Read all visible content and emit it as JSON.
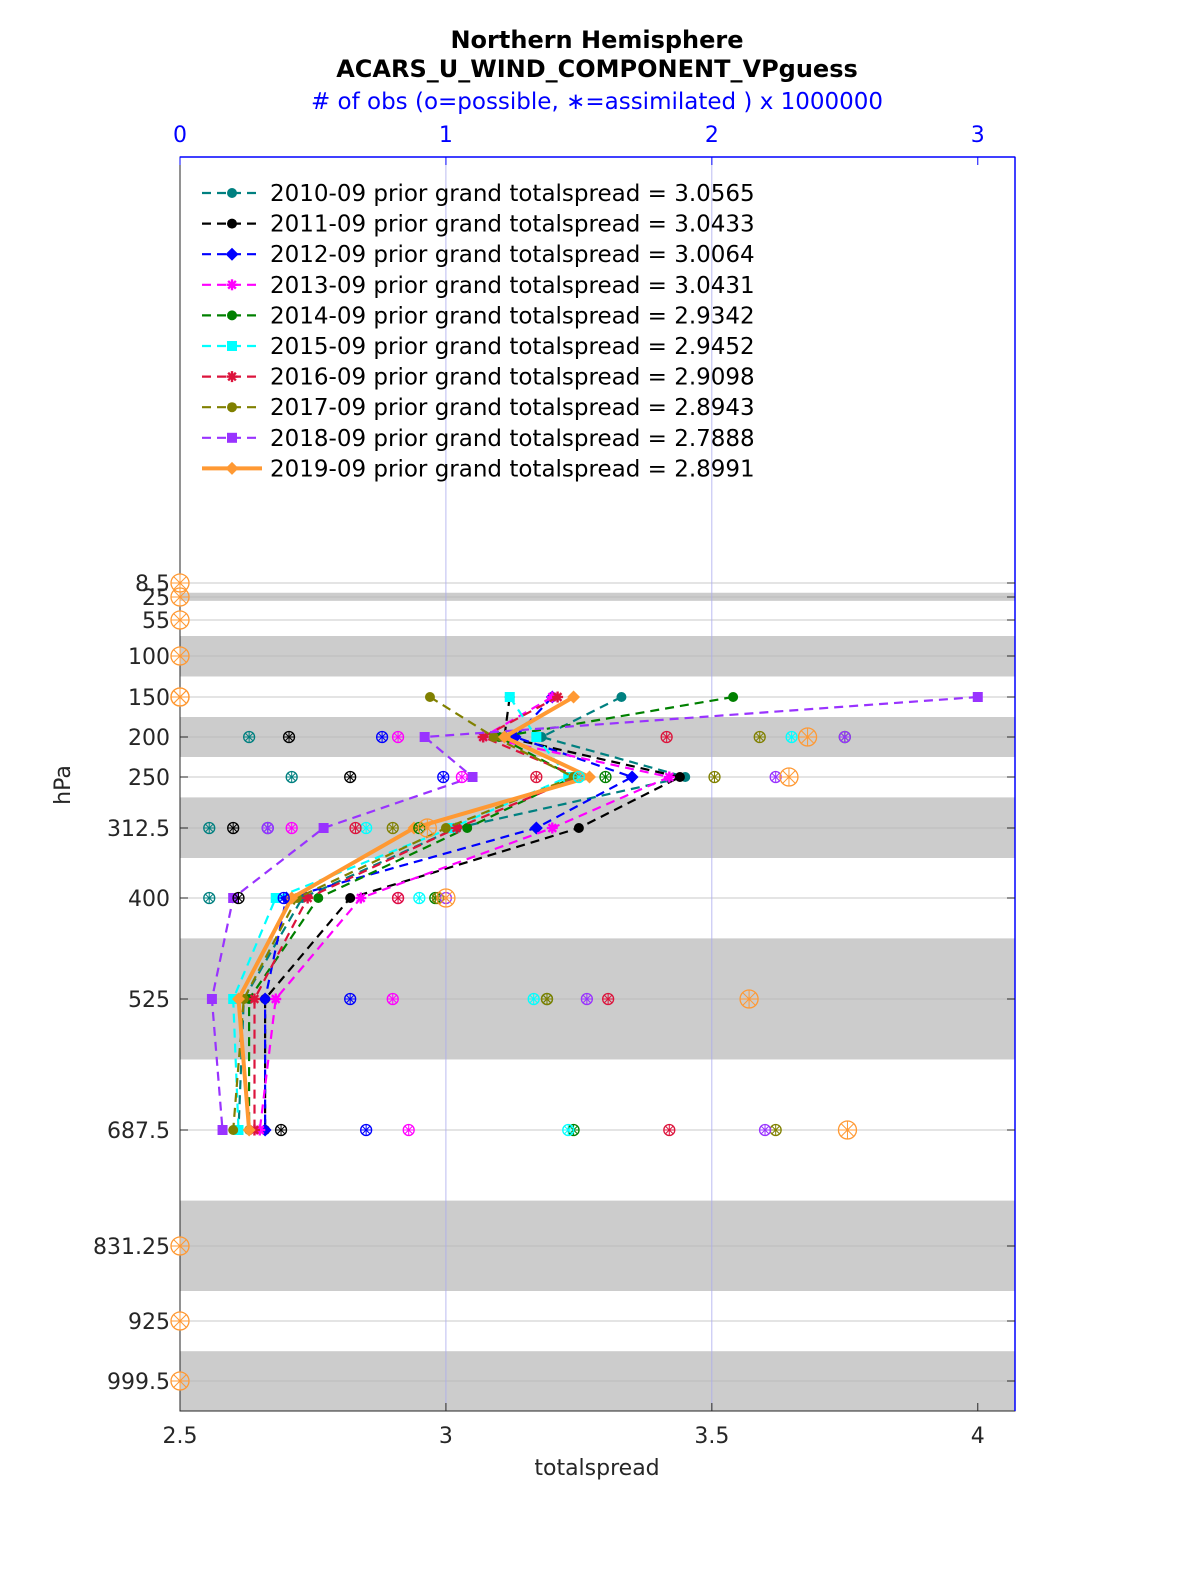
{
  "chart_data": {
    "type": "line",
    "title": "Northern Hemisphere",
    "subtitle": "ACARS_U_WIND_COMPONENT_VPguess",
    "top_axis_label": "# of obs (o=possible, ∗=assimilated ) x 1000000",
    "xlabel": "totalspread",
    "ylabel": "hPa",
    "xlim": [
      2.5,
      4.07
    ],
    "top_xlim": [
      0,
      3.14
    ],
    "x_ticks": [
      "2.5",
      "3",
      "3.5",
      "4"
    ],
    "top_ticks": [
      "0",
      "1",
      "2",
      "3"
    ],
    "y_reversed": true,
    "y_ticks": [
      "8.5",
      "25",
      "55",
      "100",
      "150",
      "200",
      "250",
      "312.5",
      "400",
      "525",
      "687.5",
      "831.25",
      "925",
      "999.5"
    ],
    "y_tick_values": [
      8.5,
      25,
      55,
      100,
      150,
      200,
      250,
      312.5,
      400,
      525,
      687.5,
      831.25,
      925,
      999.5
    ],
    "shaded_bands_hPa": [
      [
        20,
        30
      ],
      [
        75,
        125
      ],
      [
        175,
        225
      ],
      [
        275,
        350
      ],
      [
        450,
        600
      ],
      [
        775,
        887.5
      ],
      [
        962.5,
        1037.5
      ]
    ],
    "levels": [
      150,
      200,
      250,
      312.5,
      400,
      525,
      687.5
    ],
    "zero_obs_levels": [
      8.5,
      25,
      55,
      100,
      150,
      831.25,
      925,
      999.5
    ],
    "grid": true,
    "legend_position": "top-left",
    "series": [
      {
        "name": "2010-09 prior grand totalspread = 3.0565",
        "color": "#008080",
        "marker": "circle",
        "dashed": true,
        "values": [
          3.33,
          3.18,
          3.45,
          3.02,
          2.73,
          2.62,
          2.61
        ],
        "possible_obs": [
          null,
          0.26,
          0.42,
          0.11,
          0.11,
          null,
          null
        ],
        "assimilated_obs": [
          null,
          0.26,
          0.42,
          0.11,
          0.11,
          null,
          null
        ]
      },
      {
        "name": "2011-09 prior grand totalspread = 3.0433",
        "color": "#000000",
        "marker": "circle",
        "dashed": true,
        "values": [
          3.12,
          3.11,
          3.44,
          3.25,
          2.82,
          2.66,
          2.66
        ],
        "possible_obs": [
          null,
          0.41,
          0.64,
          0.2,
          0.22,
          null,
          0.38
        ],
        "assimilated_obs": [
          null,
          0.41,
          0.64,
          0.2,
          0.22,
          null,
          0.38
        ]
      },
      {
        "name": "2012-09 prior grand totalspread = 3.0064",
        "color": "#0000ff",
        "marker": "diamond",
        "dashed": true,
        "values": [
          3.2,
          3.13,
          3.35,
          3.17,
          2.7,
          2.66,
          2.66
        ],
        "possible_obs": [
          null,
          0.76,
          0.99,
          0.33,
          0.39,
          0.64,
          0.7
        ],
        "assimilated_obs": [
          null,
          0.76,
          0.99,
          0.33,
          0.39,
          0.64,
          0.7
        ]
      },
      {
        "name": "2013-09 prior grand totalspread = 3.0431",
        "color": "#ff00ff",
        "marker": "star",
        "dashed": true,
        "values": [
          3.2,
          3.07,
          3.42,
          3.2,
          2.84,
          2.68,
          2.65
        ],
        "possible_obs": [
          null,
          0.82,
          1.06,
          0.42,
          0.82,
          0.8,
          0.86
        ],
        "assimilated_obs": [
          null,
          0.82,
          1.06,
          0.42,
          0.82,
          0.8,
          0.86
        ]
      },
      {
        "name": "2014-09 prior grand totalspread = 2.9342",
        "color": "#008000",
        "marker": "circle",
        "dashed": true,
        "values": [
          3.54,
          3.1,
          3.24,
          3.04,
          2.76,
          2.63,
          2.63
        ],
        "possible_obs": [
          null,
          2.5,
          1.6,
          0.9,
          0.96,
          1.38,
          1.48
        ],
        "assimilated_obs": [
          null,
          2.5,
          1.6,
          0.9,
          0.96,
          1.38,
          1.48
        ]
      },
      {
        "name": "2015-09 prior grand totalspread = 2.9452",
        "color": "#00ffff",
        "marker": "square",
        "dashed": true,
        "values": [
          3.12,
          3.17,
          3.23,
          3.01,
          2.68,
          2.6,
          2.61
        ],
        "possible_obs": [
          null,
          2.3,
          1.5,
          0.7,
          0.9,
          1.33,
          1.46
        ],
        "assimilated_obs": [
          null,
          2.3,
          1.5,
          0.7,
          0.9,
          1.33,
          1.46
        ]
      },
      {
        "name": "2016-09 prior grand totalspread = 2.9098",
        "color": "#dc143c",
        "marker": "star",
        "dashed": true,
        "values": [
          3.21,
          3.07,
          3.25,
          3.02,
          2.74,
          2.64,
          2.64
        ],
        "possible_obs": [
          null,
          1.83,
          1.34,
          0.66,
          0.82,
          1.61,
          1.84
        ],
        "assimilated_obs": [
          null,
          1.83,
          1.34,
          0.66,
          0.82,
          1.61,
          1.84
        ]
      },
      {
        "name": "2017-09 prior grand totalspread = 2.8943",
        "color": "#808000",
        "marker": "circle",
        "dashed": true,
        "values": [
          2.97,
          3.09,
          3.24,
          3.0,
          2.72,
          2.62,
          2.6
        ],
        "possible_obs": [
          null,
          2.18,
          2.01,
          0.8,
          0.97,
          1.38,
          2.24
        ],
        "assimilated_obs": [
          null,
          2.18,
          2.01,
          0.8,
          0.97,
          1.38,
          2.24
        ]
      },
      {
        "name": "2018-09 prior grand totalspread = 2.7888",
        "color": "#9933ff",
        "marker": "square",
        "dashed": true,
        "values": [
          4.0,
          2.96,
          3.05,
          2.77,
          2.6,
          2.56,
          2.58
        ],
        "possible_obs": [
          null,
          2.5,
          2.24,
          0.33,
          1.0,
          1.53,
          2.2
        ],
        "assimilated_obs": [
          null,
          2.5,
          2.24,
          0.33,
          1.0,
          1.53,
          2.2
        ]
      },
      {
        "name": "2019-09 prior grand totalspread = 2.8991",
        "color": "#ff9933",
        "marker": "diamond",
        "dashed": false,
        "values": [
          3.24,
          3.11,
          3.27,
          2.94,
          2.71,
          2.61,
          2.63
        ],
        "possible_obs": [
          0,
          2.36,
          2.29,
          0.93,
          1.0,
          2.14,
          2.51
        ],
        "assimilated_obs": [
          0,
          2.36,
          2.29,
          0.93,
          1.0,
          2.14,
          2.51
        ]
      }
    ]
  }
}
